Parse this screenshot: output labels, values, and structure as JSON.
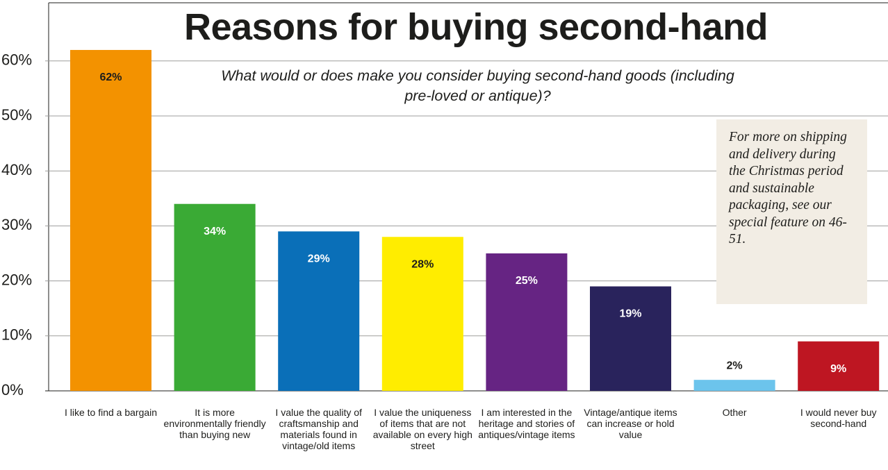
{
  "chart_data": {
    "type": "bar",
    "title": "Reasons for buying second-hand",
    "subtitle": "What would or does make you consider buying second-hand goods (including pre-loved or antique)?",
    "annotation": "For more on shipping and delivery during the Christmas period and sustainable packaging, see our special feature on 46-51.",
    "categories": [
      "I like to find a bargain",
      "It is more environmentally friendly than buying new",
      "I value the quality of craftsmanship and materials found in vintage/old items",
      "I value the uniqueness of items that are not available on every high street",
      "I am interested in the heritage and stories of antiques/vintage items",
      "Vintage/antique items can increase or hold value",
      "Other",
      "I would never buy second-hand"
    ],
    "values": [
      62,
      34,
      29,
      28,
      25,
      19,
      2,
      9
    ],
    "value_labels": [
      "62%",
      "34%",
      "29%",
      "28%",
      "25%",
      "19%",
      "2%",
      "9%"
    ],
    "colors": [
      "#f39200",
      "#3aaa35",
      "#0a6fb8",
      "#ffed00",
      "#662483",
      "#29235c",
      "#6cc4ec",
      "#be1622"
    ],
    "ylim": [
      0,
      70
    ],
    "yticks": [
      {
        "value": 0,
        "label": "0%"
      },
      {
        "value": 10,
        "label": "10%"
      },
      {
        "value": 20,
        "label": "20%"
      },
      {
        "value": 30,
        "label": "30%"
      },
      {
        "value": 40,
        "label": "40%"
      },
      {
        "value": 50,
        "label": "50%"
      },
      {
        "value": 60,
        "label": "60%"
      }
    ],
    "grid": true
  }
}
